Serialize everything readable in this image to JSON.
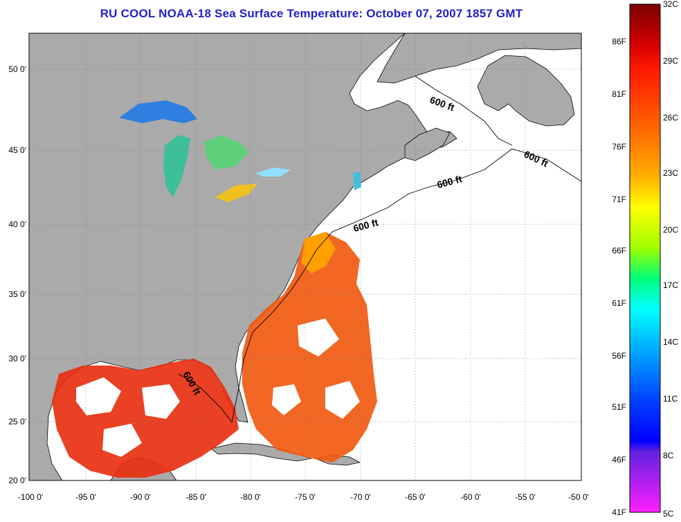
{
  "title": "RU COOL  NOAA-18  Sea Surface Temperature:  October 07, 2007 1857 GMT",
  "map": {
    "lon_ticks": [
      "-100 0'",
      "-95 0'",
      "-90 0'",
      "-85 0'",
      "-80 0'",
      "-75 0'",
      "-70 0'",
      "-65 0'",
      "-60 0'",
      "-55 0'",
      "-50 0'"
    ],
    "lat_ticks": [
      "50 0'",
      "45 0'",
      "40 0'",
      "35 0'",
      "30 0'",
      "25 0'",
      "20 0'"
    ],
    "contour_labels": [
      "600 ft",
      "600 ft",
      "600 ft",
      "600 ft",
      "600 ft"
    ],
    "land_color": "#aaaaaa",
    "ocean_nodata_color": "#ffffff"
  },
  "colorbar": {
    "fahrenheit_labels": [
      "86F",
      "81F",
      "76F",
      "71F",
      "66F",
      "61F",
      "56F",
      "51F",
      "46F",
      "41F"
    ],
    "celsius_labels": [
      "32C",
      "29C",
      "26C",
      "23C",
      "20C",
      "17C",
      "14C",
      "11C",
      "8C",
      "5C"
    ],
    "gradient_stops": [
      "#8b0000",
      "#ff0000",
      "#ff7f00",
      "#ffd700",
      "#bfff00",
      "#00ff80",
      "#00ffff",
      "#0080ff",
      "#0000ff",
      "#8000ff",
      "#ff00ff"
    ]
  }
}
